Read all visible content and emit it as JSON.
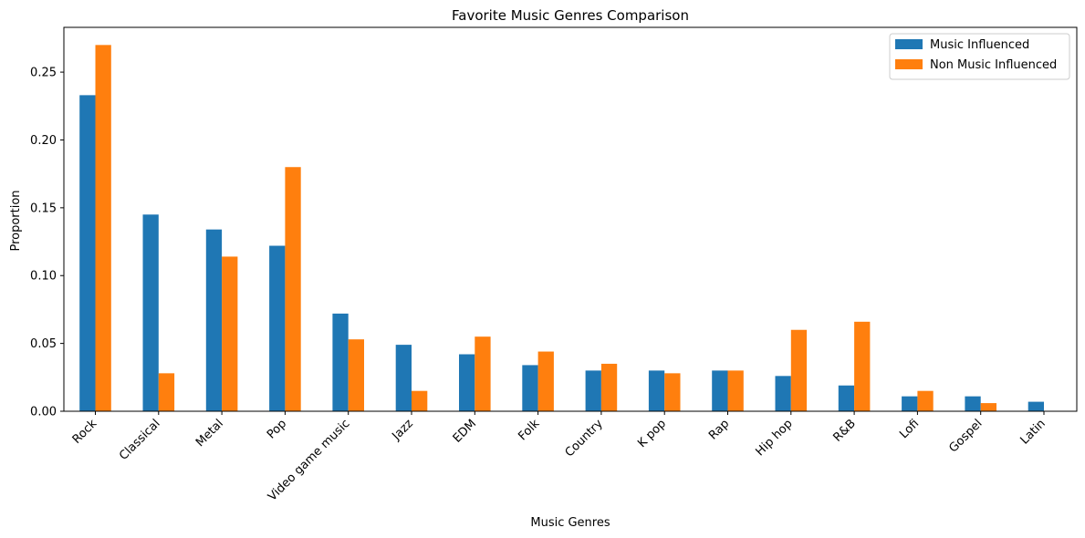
{
  "chart_data": {
    "type": "bar",
    "title": "Favorite Music Genres Comparison",
    "xlabel": "Music Genres",
    "ylabel": "Proportion",
    "ylim": [
      0,
      0.283
    ],
    "yticks": [
      "0.00",
      "0.05",
      "0.10",
      "0.15",
      "0.20",
      "0.25"
    ],
    "grid": false,
    "legend_position": "top-right",
    "categories": [
      "Rock",
      "Classical",
      "Metal",
      "Pop",
      "Video game music",
      "Jazz",
      "EDM",
      "Folk",
      "Country",
      "K pop",
      "Rap",
      "Hip hop",
      "R&B",
      "Lofi",
      "Gospel",
      "Latin"
    ],
    "series": [
      {
        "name": "Music Influenced",
        "color": "#1f77b4",
        "values": [
          0.233,
          0.145,
          0.134,
          0.122,
          0.072,
          0.049,
          0.042,
          0.034,
          0.03,
          0.03,
          0.03,
          0.026,
          0.019,
          0.011,
          0.011,
          0.007
        ]
      },
      {
        "name": "Non Music Influenced",
        "color": "#ff7f0e",
        "values": [
          0.27,
          0.028,
          0.114,
          0.18,
          0.053,
          0.015,
          0.055,
          0.044,
          0.035,
          0.028,
          0.03,
          0.06,
          0.066,
          0.015,
          0.006,
          0.0
        ]
      }
    ]
  }
}
